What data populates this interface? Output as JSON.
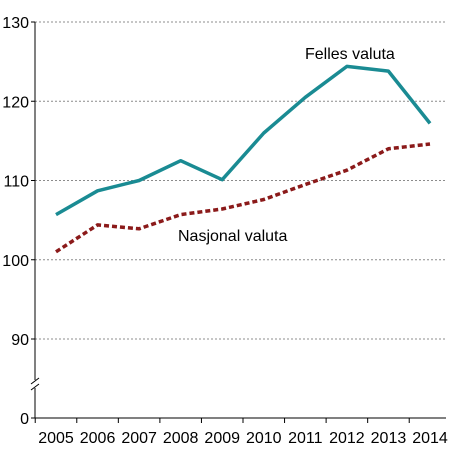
{
  "chart_data": {
    "type": "line",
    "x": [
      "2005",
      "2006",
      "2007",
      "2008",
      "2009",
      "2010",
      "2011",
      "2012",
      "2013",
      "2014"
    ],
    "series": [
      {
        "name": "Felles valuta",
        "color": "#1a8b93",
        "dash": "solid",
        "values": [
          105.7,
          108.7,
          110.0,
          112.5,
          110.1,
          116.0,
          120.5,
          124.4,
          123.8,
          117.2
        ]
      },
      {
        "name": "Nasjonal valuta",
        "color": "#8b1a1a",
        "dash": "dotted",
        "values": [
          101.0,
          104.4,
          103.9,
          105.7,
          106.4,
          107.6,
          109.5,
          111.3,
          114.0,
          114.6
        ]
      }
    ],
    "y_ticks": [
      "130",
      "120",
      "110",
      "100",
      "90",
      "0"
    ],
    "ylim": [
      85,
      130
    ],
    "axis_break": true,
    "grid": true,
    "title": "",
    "xlabel": "",
    "ylabel": ""
  }
}
